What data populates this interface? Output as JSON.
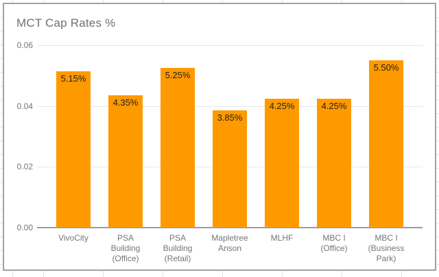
{
  "chart_data": {
    "type": "bar",
    "title": "MCT Cap Rates %",
    "categories": [
      "VivoCity",
      "PSA Building (Office)",
      "PSA Building (Retail)",
      "Mapletree Anson",
      "MLHF",
      "MBC I (Office)",
      "MBC I (Business Park)"
    ],
    "values": [
      0.0515,
      0.0435,
      0.0525,
      0.0385,
      0.0425,
      0.0425,
      0.055
    ],
    "data_labels": [
      "5.15%",
      "4.35%",
      "5.25%",
      "3.85%",
      "4.25%",
      "4.25%",
      "5.50%"
    ],
    "y_ticks": [
      {
        "label": "0.00",
        "value": 0.0
      },
      {
        "label": "0.02",
        "value": 0.02
      },
      {
        "label": "0.04",
        "value": 0.04
      },
      {
        "label": "0.06",
        "value": 0.06
      }
    ],
    "ylim": [
      0,
      0.06
    ],
    "xlabel": "",
    "ylabel": "",
    "legend": "none",
    "grid": true,
    "bar_color": "#FF9900",
    "data_label_color": "#222222",
    "axis_text_color": "#757575",
    "title_color": "#6f6f6f"
  }
}
